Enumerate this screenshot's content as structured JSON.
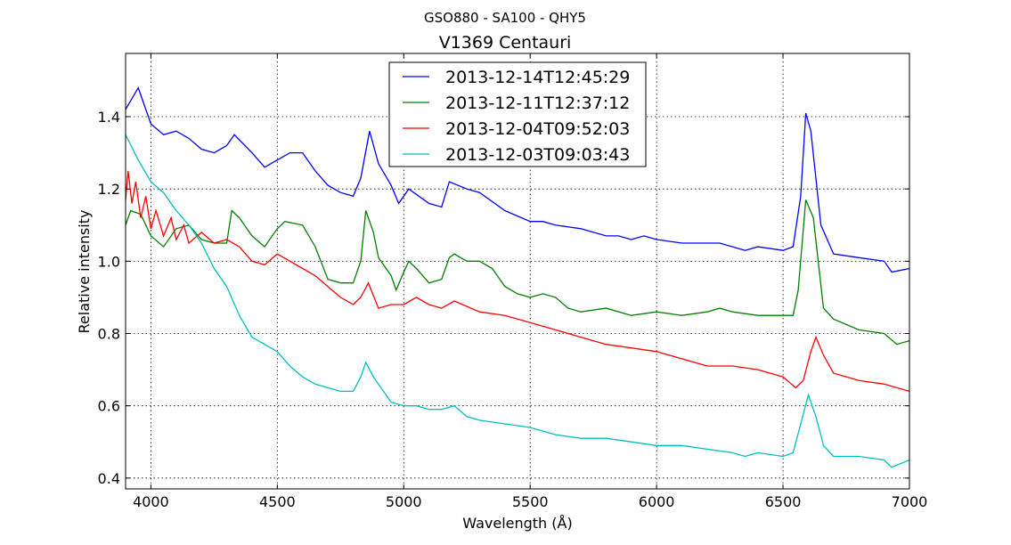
{
  "chart_data": {
    "type": "line",
    "suptitle": "GSO880 - SA100 - QHY5",
    "title": "V1369 Centauri",
    "xlabel": "Wavelength (Å)",
    "ylabel": "Relative intensity",
    "xlim": [
      3900,
      7000
    ],
    "ylim": [
      0.37,
      1.575
    ],
    "xticks": [
      4000,
      4500,
      5000,
      5500,
      6000,
      6500,
      7000
    ],
    "yticks": [
      0.4,
      0.6,
      0.8,
      1.0,
      1.2,
      1.4
    ],
    "ytick_labels": [
      "0.4",
      "0.6",
      "0.8",
      "1.0",
      "1.2",
      "1.4"
    ],
    "grid": true,
    "legend_placement": "top-center",
    "series": [
      {
        "name": "2013-12-14T12:45:29",
        "color": "#0000ff",
        "x": [
          3900,
          3950,
          4000,
          4050,
          4100,
          4150,
          4200,
          4250,
          4300,
          4330,
          4400,
          4450,
          4500,
          4550,
          4600,
          4650,
          4700,
          4750,
          4800,
          4830,
          4865,
          4900,
          4950,
          4980,
          5020,
          5100,
          5150,
          5180,
          5250,
          5300,
          5400,
          5500,
          5550,
          5600,
          5700,
          5800,
          5850,
          5900,
          5950,
          6000,
          6100,
          6200,
          6250,
          6300,
          6350,
          6400,
          6500,
          6540,
          6570,
          6590,
          6610,
          6650,
          6700,
          6800,
          6900,
          6930,
          7000
        ],
        "y": [
          1.42,
          1.48,
          1.38,
          1.35,
          1.36,
          1.34,
          1.31,
          1.3,
          1.32,
          1.35,
          1.3,
          1.26,
          1.28,
          1.3,
          1.3,
          1.25,
          1.21,
          1.19,
          1.18,
          1.23,
          1.36,
          1.27,
          1.21,
          1.16,
          1.2,
          1.16,
          1.15,
          1.22,
          1.2,
          1.19,
          1.14,
          1.11,
          1.11,
          1.1,
          1.09,
          1.07,
          1.07,
          1.06,
          1.07,
          1.06,
          1.05,
          1.05,
          1.05,
          1.04,
          1.03,
          1.04,
          1.03,
          1.04,
          1.18,
          1.41,
          1.36,
          1.1,
          1.02,
          1.01,
          1.0,
          0.97,
          0.98
        ]
      },
      {
        "name": "2013-12-11T12:37:12",
        "color": "#008000",
        "x": [
          3900,
          3920,
          3960,
          4000,
          4050,
          4100,
          4150,
          4200,
          4250,
          4300,
          4320,
          4350,
          4400,
          4450,
          4500,
          4530,
          4600,
          4650,
          4700,
          4750,
          4800,
          4830,
          4850,
          4880,
          4900,
          4950,
          4970,
          5000,
          5020,
          5050,
          5100,
          5150,
          5180,
          5200,
          5250,
          5300,
          5350,
          5400,
          5450,
          5500,
          5550,
          5600,
          5650,
          5700,
          5800,
          5900,
          6000,
          6100,
          6200,
          6250,
          6300,
          6400,
          6500,
          6540,
          6560,
          6590,
          6620,
          6660,
          6700,
          6800,
          6900,
          6950,
          7000
        ],
        "y": [
          1.1,
          1.14,
          1.13,
          1.07,
          1.04,
          1.09,
          1.1,
          1.06,
          1.05,
          1.05,
          1.14,
          1.12,
          1.07,
          1.04,
          1.09,
          1.11,
          1.1,
          1.04,
          0.95,
          0.94,
          0.94,
          1.0,
          1.14,
          1.08,
          1.01,
          0.96,
          0.92,
          0.97,
          1.0,
          0.98,
          0.94,
          0.95,
          1.01,
          1.02,
          1.0,
          1.0,
          0.98,
          0.93,
          0.91,
          0.9,
          0.91,
          0.9,
          0.87,
          0.86,
          0.87,
          0.85,
          0.86,
          0.85,
          0.86,
          0.87,
          0.86,
          0.85,
          0.85,
          0.85,
          0.92,
          1.17,
          1.12,
          0.87,
          0.84,
          0.81,
          0.8,
          0.77,
          0.78
        ]
      },
      {
        "name": "2013-12-04T09:52:03",
        "color": "#ff0000",
        "x": [
          3900,
          3910,
          3925,
          3940,
          3960,
          3980,
          4000,
          4020,
          4050,
          4080,
          4100,
          4130,
          4150,
          4200,
          4250,
          4300,
          4350,
          4400,
          4450,
          4500,
          4550,
          4600,
          4650,
          4700,
          4750,
          4800,
          4830,
          4860,
          4900,
          4950,
          5000,
          5050,
          5100,
          5150,
          5200,
          5300,
          5400,
          5500,
          5600,
          5700,
          5800,
          5900,
          6000,
          6100,
          6200,
          6300,
          6400,
          6500,
          6550,
          6580,
          6610,
          6630,
          6660,
          6700,
          6800,
          6900,
          7000
        ],
        "y": [
          1.17,
          1.25,
          1.16,
          1.22,
          1.12,
          1.18,
          1.09,
          1.14,
          1.07,
          1.12,
          1.06,
          1.1,
          1.05,
          1.08,
          1.05,
          1.06,
          1.04,
          1.0,
          0.99,
          1.02,
          1.0,
          0.98,
          0.96,
          0.93,
          0.9,
          0.88,
          0.9,
          0.94,
          0.87,
          0.88,
          0.88,
          0.9,
          0.88,
          0.87,
          0.89,
          0.86,
          0.85,
          0.83,
          0.81,
          0.79,
          0.77,
          0.76,
          0.75,
          0.73,
          0.71,
          0.71,
          0.7,
          0.68,
          0.65,
          0.67,
          0.75,
          0.79,
          0.74,
          0.69,
          0.67,
          0.66,
          0.64
        ]
      },
      {
        "name": "2013-12-03T09:03:43",
        "color": "#00bfbf",
        "x": [
          3900,
          3950,
          4000,
          4050,
          4100,
          4150,
          4200,
          4250,
          4300,
          4350,
          4400,
          4450,
          4500,
          4550,
          4600,
          4650,
          4700,
          4750,
          4800,
          4830,
          4850,
          4880,
          4920,
          4950,
          5000,
          5050,
          5100,
          5150,
          5200,
          5250,
          5300,
          5400,
          5500,
          5600,
          5700,
          5800,
          5900,
          6000,
          6100,
          6200,
          6300,
          6350,
          6400,
          6500,
          6540,
          6570,
          6600,
          6630,
          6660,
          6700,
          6800,
          6900,
          6930,
          7000
        ],
        "y": [
          1.35,
          1.28,
          1.22,
          1.19,
          1.14,
          1.1,
          1.05,
          0.98,
          0.93,
          0.85,
          0.79,
          0.77,
          0.75,
          0.71,
          0.68,
          0.66,
          0.65,
          0.64,
          0.64,
          0.68,
          0.72,
          0.68,
          0.64,
          0.61,
          0.6,
          0.6,
          0.59,
          0.59,
          0.6,
          0.57,
          0.56,
          0.55,
          0.54,
          0.52,
          0.51,
          0.51,
          0.5,
          0.49,
          0.49,
          0.48,
          0.47,
          0.46,
          0.47,
          0.46,
          0.47,
          0.55,
          0.63,
          0.57,
          0.49,
          0.46,
          0.46,
          0.45,
          0.43,
          0.45
        ]
      }
    ]
  }
}
